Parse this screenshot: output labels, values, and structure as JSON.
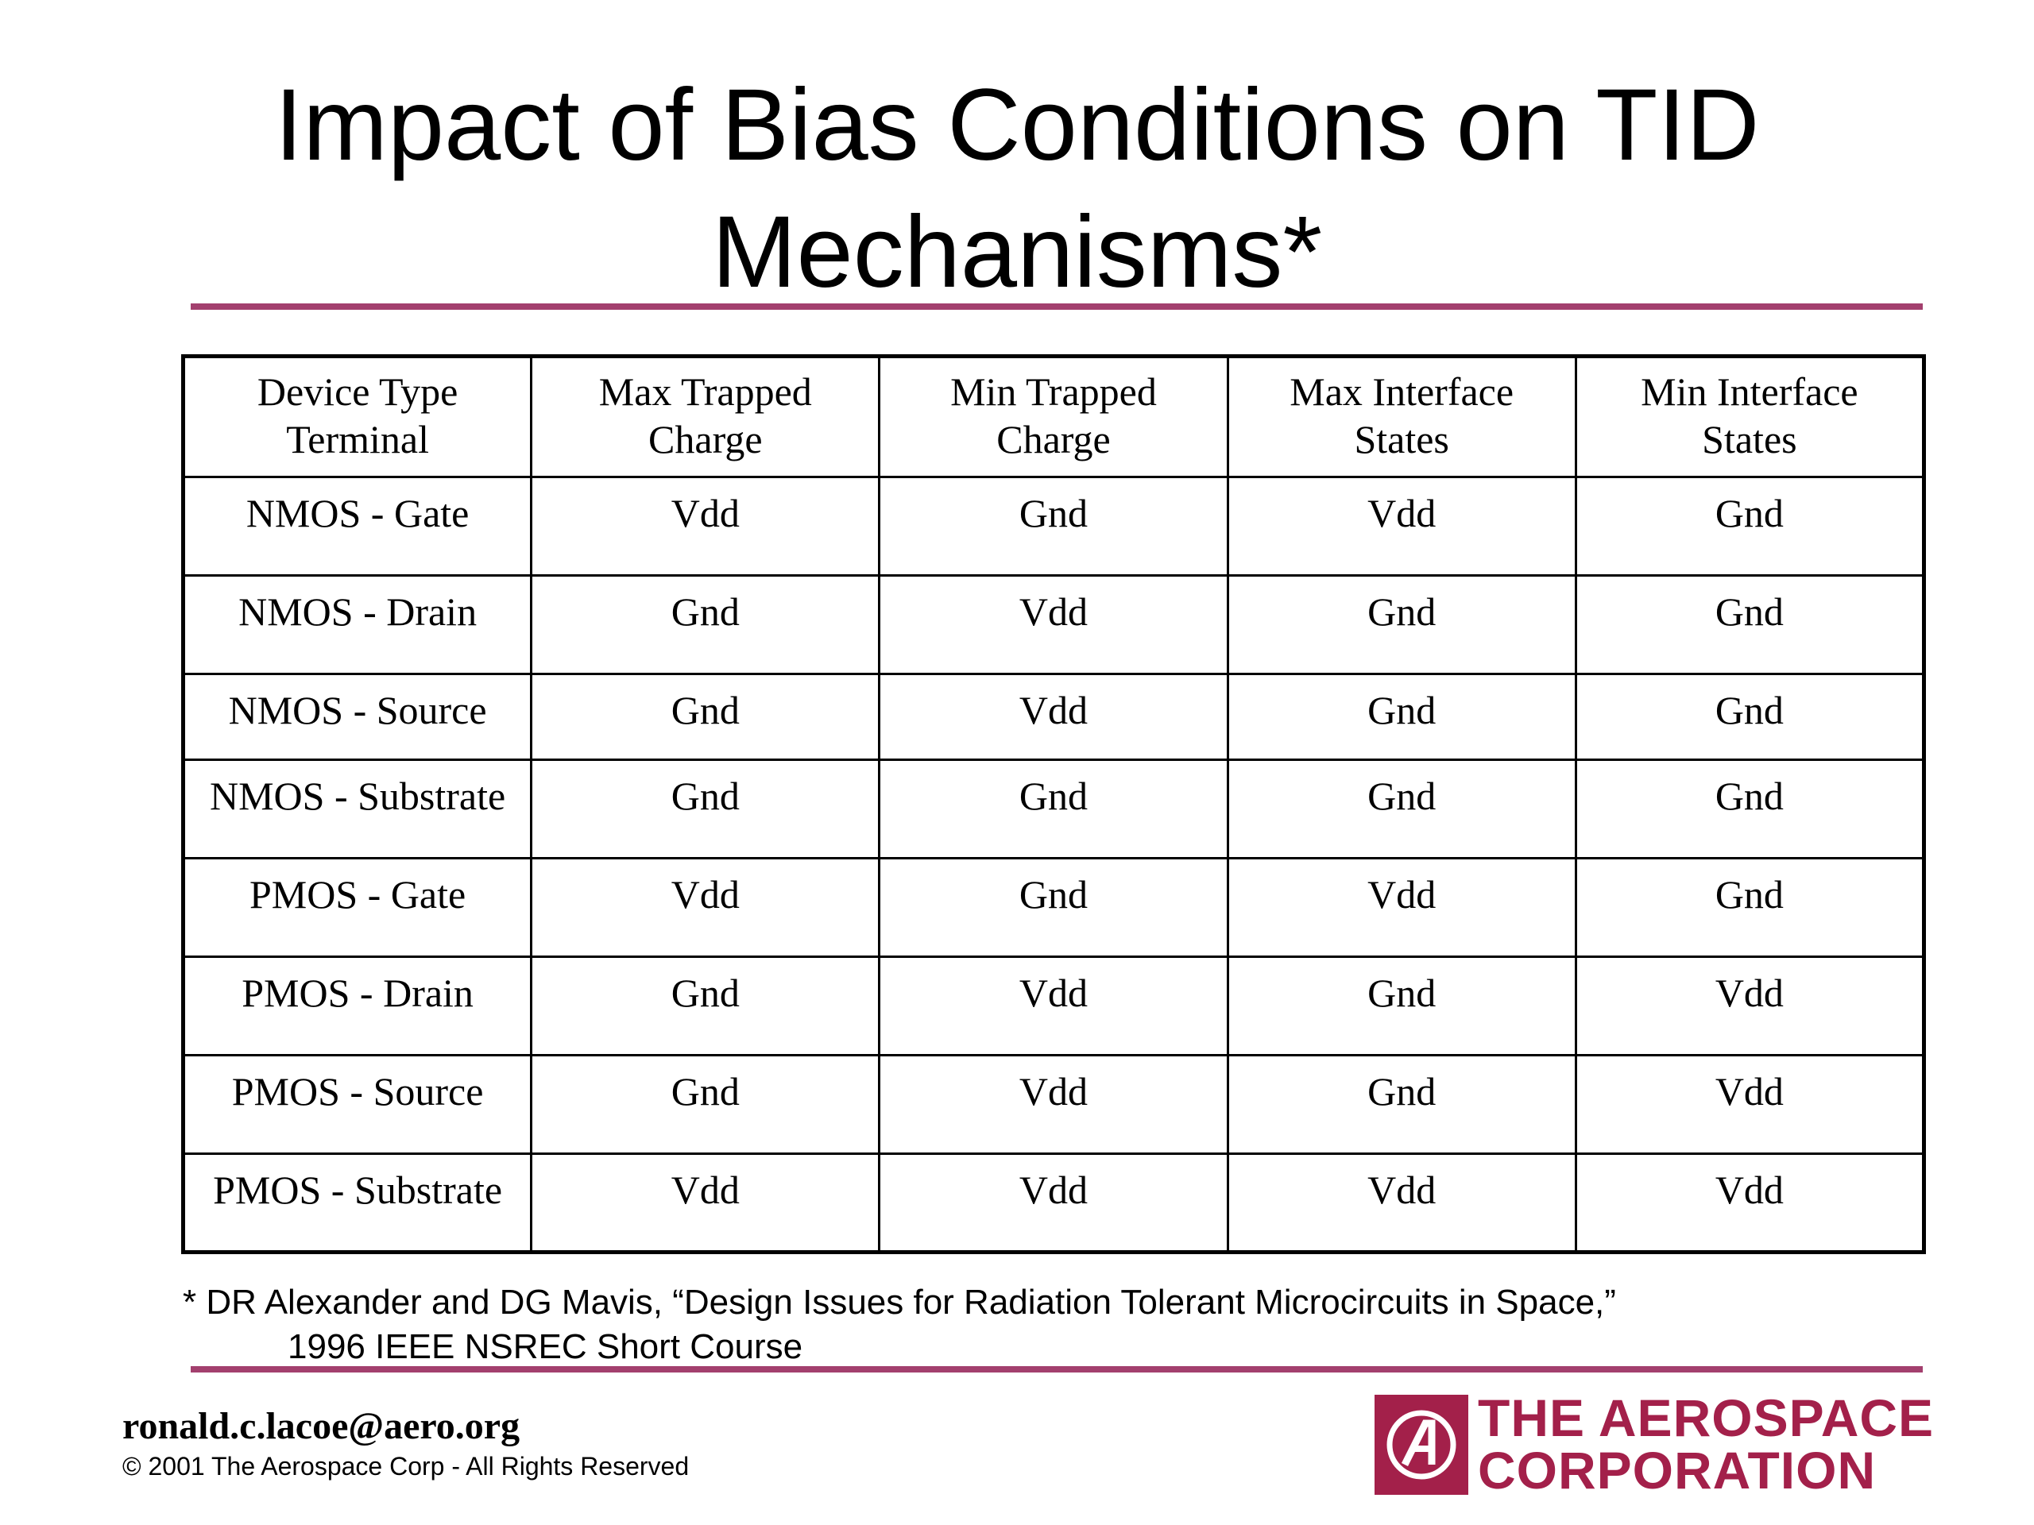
{
  "slide": {
    "title_line1": "Impact of Bias Conditions on TID",
    "title_line2": "Mechanisms*"
  },
  "table": {
    "headers": [
      [
        "Device Type",
        "Terminal"
      ],
      [
        "Max Trapped",
        "Charge"
      ],
      [
        "Min Trapped",
        "Charge"
      ],
      [
        "Max Interface",
        "States"
      ],
      [
        "Min Interface",
        "States"
      ]
    ],
    "rows": [
      [
        "NMOS - Gate",
        "Vdd",
        "Gnd",
        "Vdd",
        "Gnd"
      ],
      [
        "NMOS - Drain",
        "Gnd",
        "Vdd",
        "Gnd",
        "Gnd"
      ],
      [
        "NMOS - Source",
        "Gnd",
        "Vdd",
        "Gnd",
        "Gnd"
      ],
      [
        "NMOS - Substrate",
        "Gnd",
        "Gnd",
        "Gnd",
        "Gnd"
      ],
      [
        "PMOS - Gate",
        "Vdd",
        "Gnd",
        "Vdd",
        "Gnd"
      ],
      [
        "PMOS - Drain",
        "Gnd",
        "Vdd",
        "Gnd",
        "Vdd"
      ],
      [
        "PMOS - Source",
        "Gnd",
        "Vdd",
        "Gnd",
        "Vdd"
      ],
      [
        "PMOS - Substrate",
        "Vdd",
        "Vdd",
        "Vdd",
        "Vdd"
      ]
    ]
  },
  "footnote": {
    "line1": "* DR Alexander and DG Mavis, “Design Issues for Radiation Tolerant Microcircuits in Space,”",
    "line2": "1996 IEEE NSREC Short Course"
  },
  "footer": {
    "email": "ronald.c.lacoe@aero.org",
    "copyright": "© 2001 The Aerospace Corp - All Rights Reserved"
  },
  "logo": {
    "line1": "THE AEROSPACE",
    "line2": "CORPORATION",
    "color": "#a3204a"
  },
  "accent_color": "#a3406e"
}
